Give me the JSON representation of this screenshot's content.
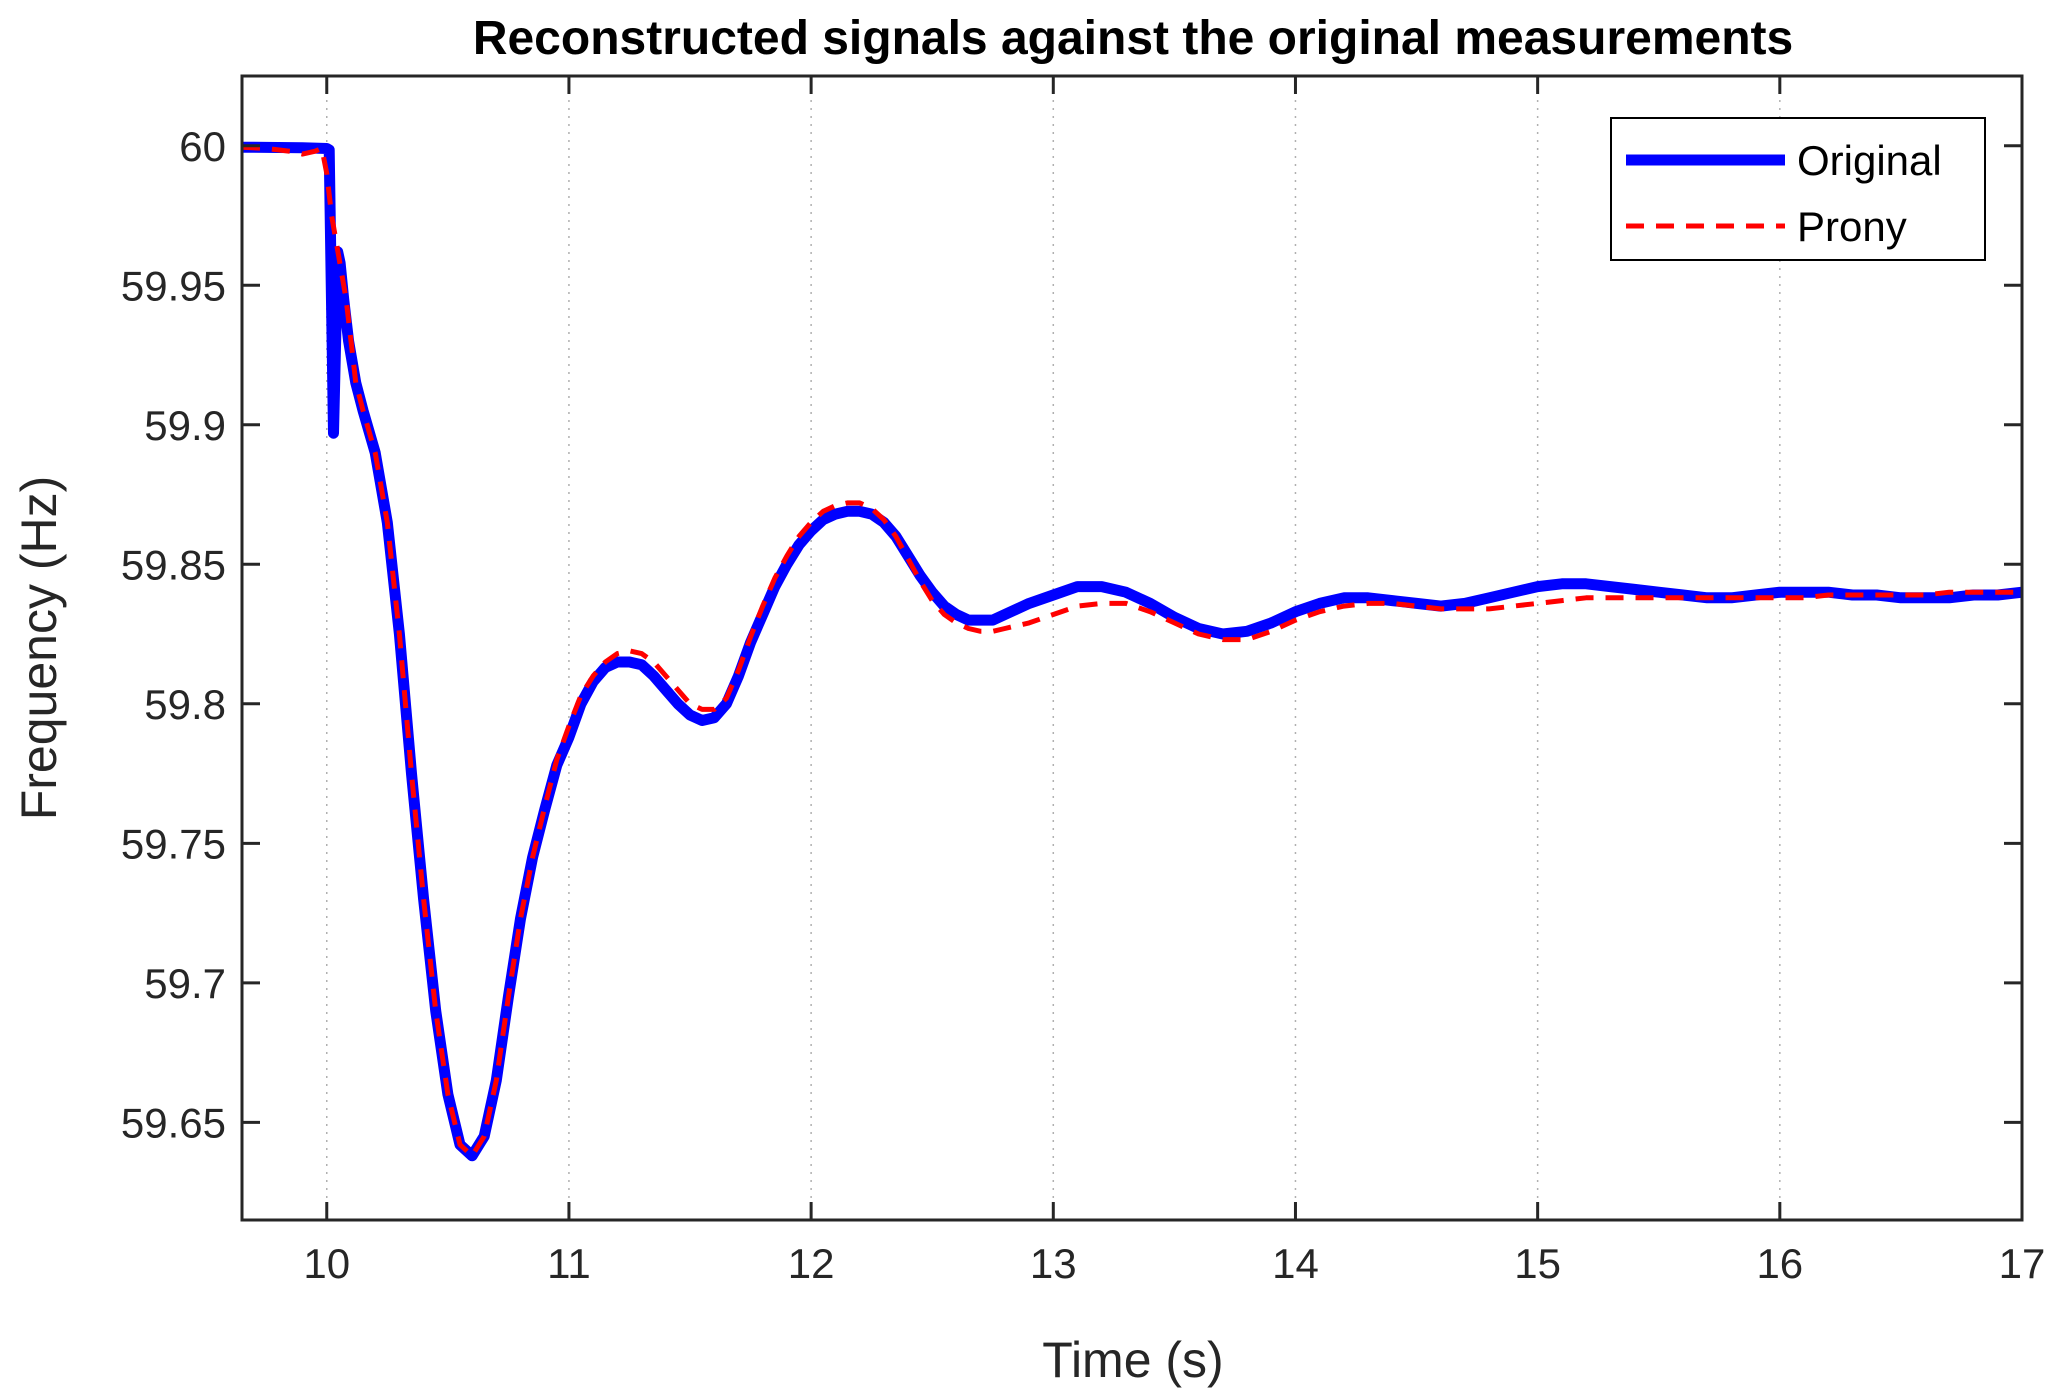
{
  "chart_data": {
    "type": "line",
    "title": "Reconstructed signals against the original measurements",
    "xlabel": "Time (s)",
    "ylabel": "Frequency (Hz)",
    "xlim": [
      9.65,
      17
    ],
    "ylim": [
      59.615,
      60.025
    ],
    "xticks": [
      10,
      11,
      12,
      13,
      14,
      15,
      16,
      17
    ],
    "yticks": [
      59.65,
      59.7,
      59.75,
      59.8,
      59.85,
      59.9,
      59.95,
      60
    ],
    "xtick_labels": [
      "10",
      "11",
      "12",
      "13",
      "14",
      "15",
      "16",
      "17"
    ],
    "ytick_labels": [
      "59.65",
      "59.7",
      "59.75",
      "59.8",
      "59.85",
      "59.9",
      "59.95",
      "60"
    ],
    "grid": "vertical dotted",
    "legend": {
      "position": "top-right"
    },
    "series": [
      {
        "name": "Original",
        "color": "#0000ff",
        "style": "solid",
        "points": [
          [
            9.65,
            59.9995
          ],
          [
            9.9,
            59.9993
          ],
          [
            10.0,
            59.999
          ],
          [
            10.01,
            59.9985
          ],
          [
            10.015,
            59.97
          ],
          [
            10.022,
            59.93
          ],
          [
            10.028,
            59.897
          ],
          [
            10.034,
            59.92
          ],
          [
            10.045,
            59.962
          ],
          [
            10.055,
            59.958
          ],
          [
            10.07,
            59.945
          ],
          [
            10.09,
            59.93
          ],
          [
            10.12,
            59.915
          ],
          [
            10.15,
            59.905
          ],
          [
            10.2,
            59.89
          ],
          [
            10.25,
            59.865
          ],
          [
            10.3,
            59.825
          ],
          [
            10.35,
            59.775
          ],
          [
            10.4,
            59.73
          ],
          [
            10.45,
            59.69
          ],
          [
            10.5,
            59.66
          ],
          [
            10.55,
            59.642
          ],
          [
            10.6,
            59.638
          ],
          [
            10.65,
            59.645
          ],
          [
            10.7,
            59.665
          ],
          [
            10.75,
            59.695
          ],
          [
            10.8,
            59.723
          ],
          [
            10.85,
            59.745
          ],
          [
            10.9,
            59.762
          ],
          [
            10.95,
            59.778
          ],
          [
            11.0,
            59.788
          ],
          [
            11.05,
            59.8
          ],
          [
            11.1,
            59.808
          ],
          [
            11.15,
            59.813
          ],
          [
            11.2,
            59.815
          ],
          [
            11.25,
            59.815
          ],
          [
            11.3,
            59.814
          ],
          [
            11.35,
            59.81
          ],
          [
            11.4,
            59.805
          ],
          [
            11.45,
            59.8
          ],
          [
            11.5,
            59.796
          ],
          [
            11.55,
            59.794
          ],
          [
            11.6,
            59.795
          ],
          [
            11.65,
            59.8
          ],
          [
            11.7,
            59.81
          ],
          [
            11.75,
            59.822
          ],
          [
            11.8,
            59.832
          ],
          [
            11.85,
            59.842
          ],
          [
            11.9,
            59.85
          ],
          [
            11.95,
            59.857
          ],
          [
            12.0,
            59.862
          ],
          [
            12.05,
            59.866
          ],
          [
            12.1,
            59.868
          ],
          [
            12.15,
            59.869
          ],
          [
            12.2,
            59.869
          ],
          [
            12.25,
            59.868
          ],
          [
            12.3,
            59.865
          ],
          [
            12.35,
            59.86
          ],
          [
            12.4,
            59.853
          ],
          [
            12.45,
            59.846
          ],
          [
            12.5,
            59.84
          ],
          [
            12.55,
            59.835
          ],
          [
            12.6,
            59.832
          ],
          [
            12.65,
            59.83
          ],
          [
            12.7,
            59.83
          ],
          [
            12.75,
            59.83
          ],
          [
            12.8,
            59.832
          ],
          [
            12.9,
            59.836
          ],
          [
            13.0,
            59.839
          ],
          [
            13.1,
            59.842
          ],
          [
            13.2,
            59.842
          ],
          [
            13.3,
            59.84
          ],
          [
            13.4,
            59.836
          ],
          [
            13.5,
            59.831
          ],
          [
            13.6,
            59.827
          ],
          [
            13.7,
            59.825
          ],
          [
            13.8,
            59.826
          ],
          [
            13.9,
            59.829
          ],
          [
            14.0,
            59.833
          ],
          [
            14.1,
            59.836
          ],
          [
            14.2,
            59.838
          ],
          [
            14.3,
            59.838
          ],
          [
            14.4,
            59.837
          ],
          [
            14.5,
            59.836
          ],
          [
            14.6,
            59.835
          ],
          [
            14.7,
            59.836
          ],
          [
            14.8,
            59.838
          ],
          [
            14.9,
            59.84
          ],
          [
            15.0,
            59.842
          ],
          [
            15.1,
            59.843
          ],
          [
            15.2,
            59.843
          ],
          [
            15.3,
            59.842
          ],
          [
            15.4,
            59.841
          ],
          [
            15.5,
            59.84
          ],
          [
            15.6,
            59.839
          ],
          [
            15.7,
            59.838
          ],
          [
            15.8,
            59.838
          ],
          [
            15.9,
            59.839
          ],
          [
            16.0,
            59.84
          ],
          [
            16.1,
            59.84
          ],
          [
            16.2,
            59.84
          ],
          [
            16.3,
            59.839
          ],
          [
            16.4,
            59.839
          ],
          [
            16.5,
            59.838
          ],
          [
            16.6,
            59.838
          ],
          [
            16.7,
            59.838
          ],
          [
            16.8,
            59.839
          ],
          [
            16.9,
            59.839
          ],
          [
            17.0,
            59.84
          ]
        ]
      },
      {
        "name": "Prony",
        "color": "#ff0000",
        "style": "dashed",
        "points": [
          [
            9.65,
            59.9995
          ],
          [
            9.75,
            59.999
          ],
          [
            9.85,
            59.998
          ],
          [
            9.9,
            59.997
          ],
          [
            9.95,
            59.998
          ],
          [
            9.98,
            59.999
          ],
          [
            10.0,
            59.99
          ],
          [
            10.02,
            59.975
          ],
          [
            10.05,
            59.96
          ],
          [
            10.08,
            59.945
          ],
          [
            10.1,
            59.93
          ],
          [
            10.12,
            59.915
          ],
          [
            10.15,
            59.905
          ],
          [
            10.2,
            59.89
          ],
          [
            10.25,
            59.865
          ],
          [
            10.3,
            59.825
          ],
          [
            10.35,
            59.775
          ],
          [
            10.4,
            59.73
          ],
          [
            10.45,
            59.69
          ],
          [
            10.5,
            59.66
          ],
          [
            10.55,
            59.642
          ],
          [
            10.6,
            59.638
          ],
          [
            10.65,
            59.645
          ],
          [
            10.7,
            59.665
          ],
          [
            10.75,
            59.695
          ],
          [
            10.8,
            59.723
          ],
          [
            10.85,
            59.745
          ],
          [
            10.9,
            59.763
          ],
          [
            10.95,
            59.78
          ],
          [
            11.0,
            59.792
          ],
          [
            11.05,
            59.803
          ],
          [
            11.1,
            59.81
          ],
          [
            11.15,
            59.815
          ],
          [
            11.2,
            59.818
          ],
          [
            11.25,
            59.819
          ],
          [
            11.3,
            59.818
          ],
          [
            11.35,
            59.815
          ],
          [
            11.4,
            59.81
          ],
          [
            11.45,
            59.805
          ],
          [
            11.5,
            59.8
          ],
          [
            11.55,
            59.798
          ],
          [
            11.6,
            59.798
          ],
          [
            11.65,
            59.802
          ],
          [
            11.7,
            59.812
          ],
          [
            11.75,
            59.824
          ],
          [
            11.8,
            59.835
          ],
          [
            11.85,
            59.845
          ],
          [
            11.9,
            59.853
          ],
          [
            11.95,
            59.86
          ],
          [
            12.0,
            59.865
          ],
          [
            12.05,
            59.869
          ],
          [
            12.1,
            59.871
          ],
          [
            12.15,
            59.872
          ],
          [
            12.2,
            59.872
          ],
          [
            12.25,
            59.87
          ],
          [
            12.3,
            59.866
          ],
          [
            12.35,
            59.86
          ],
          [
            12.4,
            59.852
          ],
          [
            12.45,
            59.844
          ],
          [
            12.5,
            59.837
          ],
          [
            12.55,
            59.832
          ],
          [
            12.6,
            59.829
          ],
          [
            12.65,
            59.827
          ],
          [
            12.7,
            59.826
          ],
          [
            12.75,
            59.826
          ],
          [
            12.8,
            59.827
          ],
          [
            12.9,
            59.829
          ],
          [
            13.0,
            59.832
          ],
          [
            13.1,
            59.835
          ],
          [
            13.2,
            59.836
          ],
          [
            13.3,
            59.836
          ],
          [
            13.4,
            59.833
          ],
          [
            13.5,
            59.829
          ],
          [
            13.6,
            59.825
          ],
          [
            13.7,
            59.823
          ],
          [
            13.8,
            59.823
          ],
          [
            13.9,
            59.826
          ],
          [
            14.0,
            59.83
          ],
          [
            14.1,
            59.833
          ],
          [
            14.2,
            59.835
          ],
          [
            14.3,
            59.836
          ],
          [
            14.4,
            59.836
          ],
          [
            14.5,
            59.835
          ],
          [
            14.6,
            59.834
          ],
          [
            14.7,
            59.834
          ],
          [
            14.8,
            59.834
          ],
          [
            14.9,
            59.835
          ],
          [
            15.0,
            59.836
          ],
          [
            15.1,
            59.837
          ],
          [
            15.2,
            59.838
          ],
          [
            15.3,
            59.838
          ],
          [
            15.4,
            59.838
          ],
          [
            15.5,
            59.838
          ],
          [
            15.6,
            59.838
          ],
          [
            15.7,
            59.838
          ],
          [
            15.8,
            59.838
          ],
          [
            15.9,
            59.838
          ],
          [
            16.0,
            59.838
          ],
          [
            16.1,
            59.838
          ],
          [
            16.2,
            59.839
          ],
          [
            16.3,
            59.839
          ],
          [
            16.4,
            59.839
          ],
          [
            16.5,
            59.839
          ],
          [
            16.6,
            59.839
          ],
          [
            16.7,
            59.84
          ],
          [
            16.8,
            59.84
          ],
          [
            16.9,
            59.84
          ],
          [
            17.0,
            59.84
          ]
        ]
      }
    ]
  }
}
